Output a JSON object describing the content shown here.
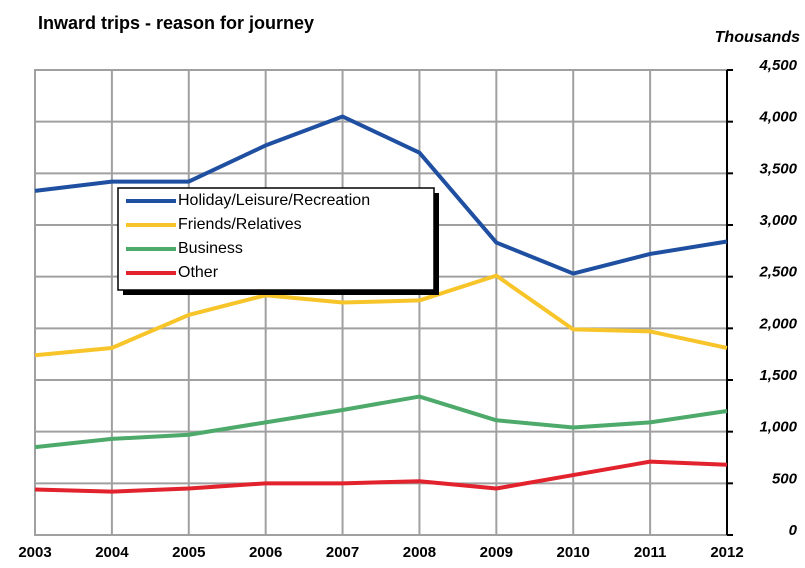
{
  "chart_data": {
    "type": "line",
    "title": "Inward trips - reason  for journey",
    "y_axis_label": "Thousands",
    "categories": [
      "2003",
      "2004",
      "2005",
      "2006",
      "2007",
      "2008",
      "2009",
      "2010",
      "2011",
      "2012"
    ],
    "series": [
      {
        "name": "Holiday/Leisure/Recreation",
        "color": "#1f4fa0",
        "values": [
          3330,
          3420,
          3420,
          3770,
          4050,
          3700,
          2830,
          2530,
          2720,
          2840
        ]
      },
      {
        "name": "Friends/Relatives",
        "color": "#f7c42a",
        "values": [
          1740,
          1810,
          2130,
          2320,
          2250,
          2270,
          2510,
          1990,
          1970,
          1810
        ]
      },
      {
        "name": "Business",
        "color": "#4daa6b",
        "values": [
          850,
          930,
          970,
          1090,
          1210,
          1340,
          1110,
          1040,
          1090,
          1200
        ]
      },
      {
        "name": "Other",
        "color": "#e2222c",
        "values": [
          440,
          420,
          450,
          500,
          500,
          520,
          450,
          580,
          710,
          680
        ]
      }
    ],
    "ylim": [
      0,
      4500
    ],
    "yticks": [
      0,
      500,
      {
        "value": 1000,
        "label": "1,000"
      },
      {
        "value": 1500,
        "label": "1,500"
      },
      {
        "value": 2000,
        "label": "2,000"
      },
      {
        "value": 2500,
        "label": "2,500"
      },
      {
        "value": 3000,
        "label": "3,000"
      },
      {
        "value": 3500,
        "label": "3,500"
      },
      {
        "value": 4000,
        "label": "4,000"
      },
      {
        "value": 4500,
        "label": "4,500"
      }
    ],
    "grid": true,
    "y_axis_side": "right"
  }
}
